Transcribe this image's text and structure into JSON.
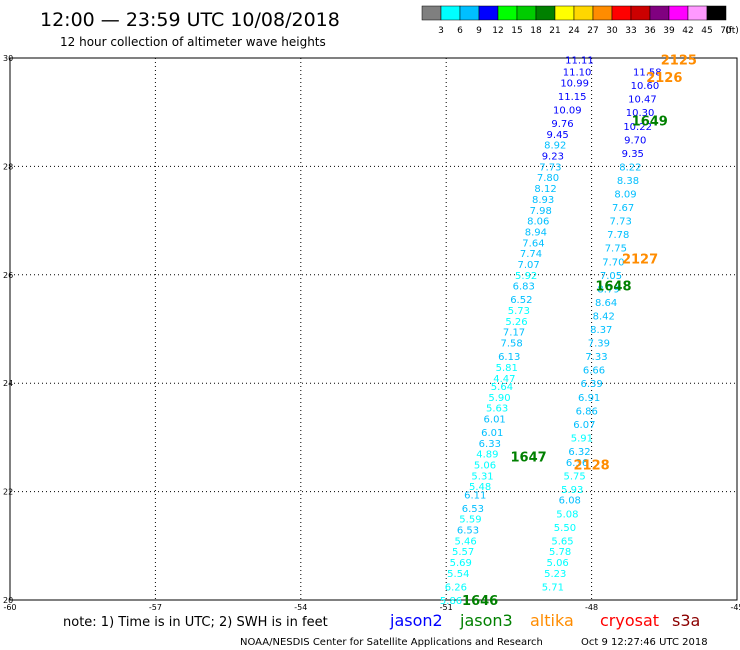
{
  "header": {
    "title": "12:00 — 23:59 UTC 10/08/2018",
    "subtitle": "12 hour collection of altimeter wave heights"
  },
  "colorbar": {
    "colors": [
      "#7f7f7f",
      "#00ffff",
      "#00bfff",
      "#0000ff",
      "#00ff00",
      "#00cc00",
      "#008000",
      "#ffff00",
      "#ffd700",
      "#ff8c00",
      "#ff0000",
      "#cc0000",
      "#800080",
      "#ff00ff",
      "#ff99ff",
      "#000000"
    ],
    "labels": [
      "3",
      "6",
      "9",
      "12",
      "15",
      "18",
      "21",
      "24",
      "27",
      "30",
      "33",
      "36",
      "39",
      "42",
      "45",
      "70"
    ],
    "unit": "(ft)"
  },
  "footer": {
    "note": "note:  1) Time is in UTC;  2) SWH is in feet",
    "credit": "NOAA/NESDIS Center for Satellite Applications and Research",
    "timestamp": "Oct  9 12:27:46 UTC 2018"
  },
  "legend": [
    {
      "name": "jason2",
      "color": "#0000ff"
    },
    {
      "name": "jason3",
      "color": "#008000"
    },
    {
      "name": "altika",
      "color": "#ff8c00"
    },
    {
      "name": "cryosat",
      "color": "#ff0000"
    },
    {
      "name": "s3a",
      "color": "#8b0000"
    }
  ],
  "chart_data": {
    "type": "scatter",
    "xlim": [
      -60,
      -45
    ],
    "ylim": [
      20,
      30
    ],
    "x_ticks": [
      "-60",
      "-57",
      "-54",
      "-51",
      "-48",
      "-45"
    ],
    "y_ticks": [
      "20",
      "22",
      "24",
      "26",
      "28",
      "30"
    ],
    "grid": true,
    "points": [
      {
        "x": -50.9,
        "y": 20.0,
        "label": "5.86",
        "color": "#00ffff"
      },
      {
        "x": -50.8,
        "y": 20.25,
        "label": "6.26",
        "color": "#00ffff"
      },
      {
        "x": -50.75,
        "y": 20.5,
        "label": "5.54",
        "color": "#00ffff"
      },
      {
        "x": -50.7,
        "y": 20.7,
        "label": "5.69",
        "color": "#00ffff"
      },
      {
        "x": -50.65,
        "y": 20.9,
        "label": "5.57",
        "color": "#00ffff"
      },
      {
        "x": -50.6,
        "y": 21.1,
        "label": "5.46",
        "color": "#00ffff"
      },
      {
        "x": -50.55,
        "y": 21.3,
        "label": "6.53",
        "color": "#00bfff"
      },
      {
        "x": -50.5,
        "y": 21.5,
        "label": "5.59",
        "color": "#00ffff"
      },
      {
        "x": -50.45,
        "y": 21.7,
        "label": "6.53",
        "color": "#00bfff"
      },
      {
        "x": -50.4,
        "y": 21.95,
        "label": "6.11",
        "color": "#00bfff"
      },
      {
        "x": -50.3,
        "y": 22.1,
        "label": "5.48",
        "color": "#00ffff"
      },
      {
        "x": -50.25,
        "y": 22.3,
        "label": "5.31",
        "color": "#00ffff"
      },
      {
        "x": -50.2,
        "y": 22.5,
        "label": "5.06",
        "color": "#00ffff"
      },
      {
        "x": -50.15,
        "y": 22.7,
        "label": "4.89",
        "color": "#00ffff"
      },
      {
        "x": -50.1,
        "y": 22.9,
        "label": "6.33",
        "color": "#00bfff"
      },
      {
        "x": -50.05,
        "y": 23.1,
        "label": "6.01",
        "color": "#00bfff"
      },
      {
        "x": -50.0,
        "y": 23.35,
        "label": "6.01",
        "color": "#00bfff"
      },
      {
        "x": -49.95,
        "y": 23.55,
        "label": "5.63",
        "color": "#00ffff"
      },
      {
        "x": -49.9,
        "y": 23.75,
        "label": "5.90",
        "color": "#00ffff"
      },
      {
        "x": -49.85,
        "y": 23.95,
        "label": "5.64",
        "color": "#00ffff"
      },
      {
        "x": -49.8,
        "y": 24.1,
        "label": "4.47",
        "color": "#00ffff"
      },
      {
        "x": -49.75,
        "y": 24.3,
        "label": "5.81",
        "color": "#00ffff"
      },
      {
        "x": -49.7,
        "y": 24.5,
        "label": "6.13",
        "color": "#00bfff"
      },
      {
        "x": -49.65,
        "y": 24.75,
        "label": "7.58",
        "color": "#00bfff"
      },
      {
        "x": -49.6,
        "y": 24.95,
        "label": "7.17",
        "color": "#00bfff"
      },
      {
        "x": -49.55,
        "y": 25.15,
        "label": "5.26",
        "color": "#00ffff"
      },
      {
        "x": -49.5,
        "y": 25.35,
        "label": "5.73",
        "color": "#00ffff"
      },
      {
        "x": -49.45,
        "y": 25.55,
        "label": "6.52",
        "color": "#00bfff"
      },
      {
        "x": -49.4,
        "y": 25.8,
        "label": "6.83",
        "color": "#00bfff"
      },
      {
        "x": -49.35,
        "y": 26.0,
        "label": "5.92",
        "color": "#00ffff"
      },
      {
        "x": -49.3,
        "y": 26.2,
        "label": "7.07",
        "color": "#00bfff"
      },
      {
        "x": -49.25,
        "y": 26.4,
        "label": "7.74",
        "color": "#00bfff"
      },
      {
        "x": -49.2,
        "y": 26.6,
        "label": "7.64",
        "color": "#00bfff"
      },
      {
        "x": -49.15,
        "y": 26.8,
        "label": "8.94",
        "color": "#00bfff"
      },
      {
        "x": -49.1,
        "y": 27.0,
        "label": "8.06",
        "color": "#00bfff"
      },
      {
        "x": -49.05,
        "y": 27.2,
        "label": "7.98",
        "color": "#00bfff"
      },
      {
        "x": -49.0,
        "y": 27.4,
        "label": "8.93",
        "color": "#00bfff"
      },
      {
        "x": -48.95,
        "y": 27.6,
        "label": "8.12",
        "color": "#00bfff"
      },
      {
        "x": -48.9,
        "y": 27.8,
        "label": "7.80",
        "color": "#00bfff"
      },
      {
        "x": -48.85,
        "y": 28.0,
        "label": "7.73",
        "color": "#00bfff"
      },
      {
        "x": -48.8,
        "y": 28.2,
        "label": "9.23",
        "color": "#0000ff"
      },
      {
        "x": -48.75,
        "y": 28.4,
        "label": "8.92",
        "color": "#00bfff"
      },
      {
        "x": -48.7,
        "y": 28.6,
        "label": "9.45",
        "color": "#0000ff"
      },
      {
        "x": -48.6,
        "y": 28.8,
        "label": "9.76",
        "color": "#0000ff"
      },
      {
        "x": -48.5,
        "y": 29.05,
        "label": "10.09",
        "color": "#0000ff"
      },
      {
        "x": -48.4,
        "y": 29.3,
        "label": "11.15",
        "color": "#0000ff"
      },
      {
        "x": -48.35,
        "y": 29.55,
        "label": "10.99",
        "color": "#0000ff"
      },
      {
        "x": -48.3,
        "y": 29.75,
        "label": "11.10",
        "color": "#0000ff"
      },
      {
        "x": -48.25,
        "y": 29.97,
        "label": "11.11",
        "color": "#0000ff"
      },
      {
        "x": -48.8,
        "y": 20.25,
        "label": "5.71",
        "color": "#00ffff"
      },
      {
        "x": -48.75,
        "y": 20.5,
        "label": "5.23",
        "color": "#00ffff"
      },
      {
        "x": -48.7,
        "y": 20.7,
        "label": "5.06",
        "color": "#00ffff"
      },
      {
        "x": -48.65,
        "y": 20.9,
        "label": "5.78",
        "color": "#00ffff"
      },
      {
        "x": -48.6,
        "y": 21.1,
        "label": "5.65",
        "color": "#00ffff"
      },
      {
        "x": -48.55,
        "y": 21.35,
        "label": "5.50",
        "color": "#00ffff"
      },
      {
        "x": -48.5,
        "y": 21.6,
        "label": "5.08",
        "color": "#00ffff"
      },
      {
        "x": -48.45,
        "y": 21.85,
        "label": "6.08",
        "color": "#00bfff"
      },
      {
        "x": -48.4,
        "y": 22.05,
        "label": "5.93",
        "color": "#00ffff"
      },
      {
        "x": -48.35,
        "y": 22.3,
        "label": "5.75",
        "color": "#00ffff"
      },
      {
        "x": -48.3,
        "y": 22.55,
        "label": "6.36",
        "color": "#00bfff"
      },
      {
        "x": -48.25,
        "y": 22.75,
        "label": "6.32",
        "color": "#00bfff"
      },
      {
        "x": -48.2,
        "y": 23.0,
        "label": "5.91",
        "color": "#00ffff"
      },
      {
        "x": -48.15,
        "y": 23.25,
        "label": "6.07",
        "color": "#00bfff"
      },
      {
        "x": -48.1,
        "y": 23.5,
        "label": "6.86",
        "color": "#00bfff"
      },
      {
        "x": -48.05,
        "y": 23.75,
        "label": "6.91",
        "color": "#00bfff"
      },
      {
        "x": -48.0,
        "y": 24.0,
        "label": "6.39",
        "color": "#00bfff"
      },
      {
        "x": -47.95,
        "y": 24.25,
        "label": "6.66",
        "color": "#00bfff"
      },
      {
        "x": -47.9,
        "y": 24.5,
        "label": "7.33",
        "color": "#00bfff"
      },
      {
        "x": -47.85,
        "y": 24.75,
        "label": "7.39",
        "color": "#00bfff"
      },
      {
        "x": -47.8,
        "y": 25.0,
        "label": "8.37",
        "color": "#00bfff"
      },
      {
        "x": -47.75,
        "y": 25.25,
        "label": "8.42",
        "color": "#00bfff"
      },
      {
        "x": -47.7,
        "y": 25.5,
        "label": "8.64",
        "color": "#00bfff"
      },
      {
        "x": -47.65,
        "y": 25.75,
        "label": "8.79",
        "color": "#00bfff"
      },
      {
        "x": -47.6,
        "y": 26.0,
        "label": "7.05",
        "color": "#00bfff"
      },
      {
        "x": -47.55,
        "y": 26.25,
        "label": "7.70",
        "color": "#00bfff"
      },
      {
        "x": -47.5,
        "y": 26.5,
        "label": "7.75",
        "color": "#00bfff"
      },
      {
        "x": -47.45,
        "y": 26.75,
        "label": "7.78",
        "color": "#00bfff"
      },
      {
        "x": -47.4,
        "y": 27.0,
        "label": "7.73",
        "color": "#00bfff"
      },
      {
        "x": -47.35,
        "y": 27.25,
        "label": "7.67",
        "color": "#00bfff"
      },
      {
        "x": -47.3,
        "y": 27.5,
        "label": "8.09",
        "color": "#00bfff"
      },
      {
        "x": -47.25,
        "y": 27.75,
        "label": "8.38",
        "color": "#00bfff"
      },
      {
        "x": -47.2,
        "y": 28.0,
        "label": "8.22",
        "color": "#00bfff"
      },
      {
        "x": -47.15,
        "y": 28.25,
        "label": "9.35",
        "color": "#0000ff"
      },
      {
        "x": -47.1,
        "y": 28.5,
        "label": "9.70",
        "color": "#0000ff"
      },
      {
        "x": -47.05,
        "y": 28.75,
        "label": "10.22",
        "color": "#0000ff"
      },
      {
        "x": -47.0,
        "y": 29.0,
        "label": "10.30",
        "color": "#0000ff"
      },
      {
        "x": -46.95,
        "y": 29.25,
        "label": "10.47",
        "color": "#0000ff"
      },
      {
        "x": -46.9,
        "y": 29.5,
        "label": "10.60",
        "color": "#0000ff"
      },
      {
        "x": -46.85,
        "y": 29.75,
        "label": "11.58",
        "color": "#0000ff"
      }
    ],
    "pass_labels": [
      {
        "x": -50.3,
        "y": 20.0,
        "label": "1646",
        "color": "#008000"
      },
      {
        "x": -49.3,
        "y": 22.65,
        "label": "1647",
        "color": "#008000"
      },
      {
        "x": -48.0,
        "y": 22.5,
        "label": "2128",
        "color": "#ff8c00"
      },
      {
        "x": -47.55,
        "y": 25.8,
        "label": "1648",
        "color": "#008000"
      },
      {
        "x": -47.0,
        "y": 26.3,
        "label": "2127",
        "color": "#ff8c00"
      },
      {
        "x": -46.8,
        "y": 28.85,
        "label": "1649",
        "color": "#008000"
      },
      {
        "x": -46.5,
        "y": 29.65,
        "label": "2126",
        "color": "#ff8c00"
      },
      {
        "x": -46.2,
        "y": 29.97,
        "label": "2125",
        "color": "#ff8c00"
      }
    ]
  }
}
